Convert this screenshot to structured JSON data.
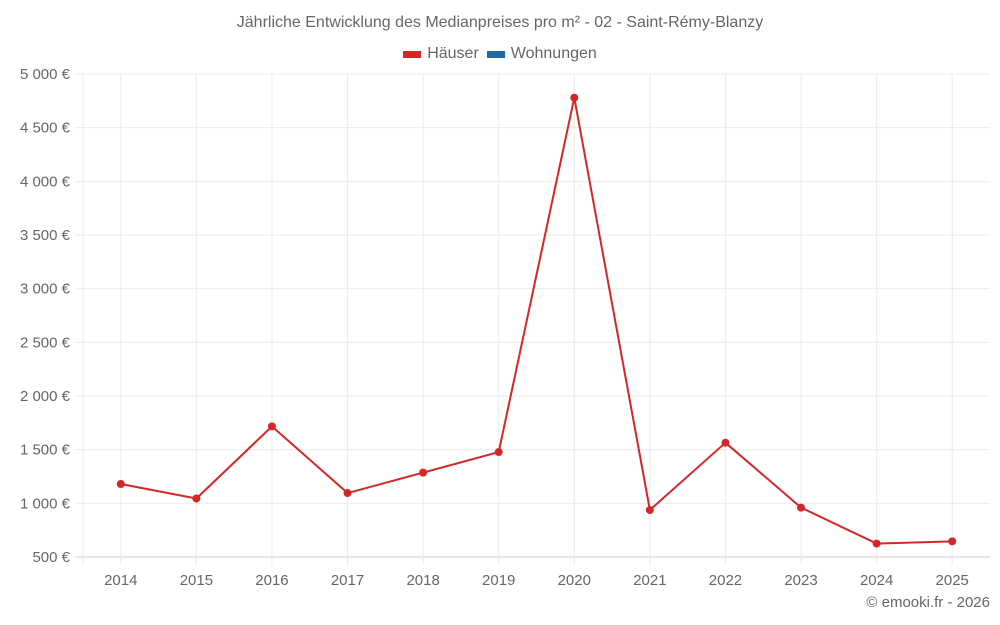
{
  "chart_data": {
    "type": "line",
    "title": "Jährliche Entwicklung des Medianpreises pro m² - 02 - Saint-Rémy-Blanzy",
    "xlabel": "",
    "ylabel": "",
    "categories": [
      "2014",
      "2015",
      "2016",
      "2017",
      "2018",
      "2019",
      "2020",
      "2021",
      "2022",
      "2023",
      "2024",
      "2025"
    ],
    "series": [
      {
        "name": "Häuser",
        "color": "#d62728",
        "values": [
          1180,
          1045,
          1717,
          1096,
          1286,
          1478,
          4779,
          938,
          1565,
          960,
          625,
          646
        ]
      },
      {
        "name": "Wohnungen",
        "color": "#1f6aa5",
        "values": []
      }
    ],
    "ylim": [
      500,
      5000
    ],
    "yticks": [
      500,
      1000,
      1500,
      2000,
      2500,
      3000,
      3500,
      4000,
      4500,
      5000
    ],
    "ytick_labels": [
      "500 €",
      "1 000 €",
      "1 500 €",
      "2 000 €",
      "2 500 €",
      "3 000 €",
      "3 500 €",
      "4 000 €",
      "4 500 €",
      "5 000 €"
    ],
    "grid": true,
    "legend_position": "top"
  },
  "header": {
    "title": "Jährliche Entwicklung des Medianpreises pro m² - 02 - Saint-Rémy-Blanzy"
  },
  "legend": {
    "items": [
      {
        "label": "Häuser",
        "color": "#d62728"
      },
      {
        "label": "Wohnungen",
        "color": "#1f6aa5"
      }
    ]
  },
  "footer": {
    "credit": "© emooki.fr - 2026"
  }
}
